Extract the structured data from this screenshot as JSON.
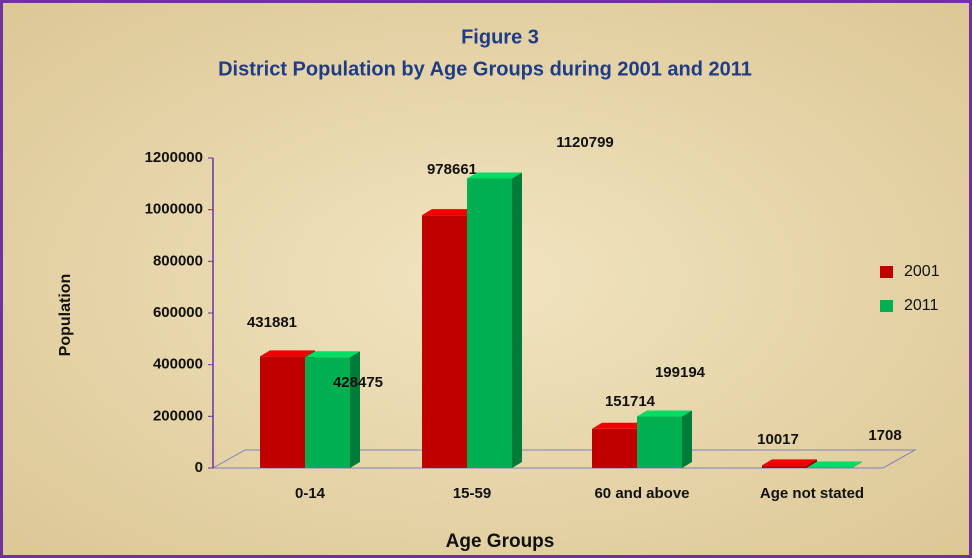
{
  "chart_data": {
    "type": "bar3d",
    "title": "Figure 3",
    "subtitle": "District Population by Age Groups during 2001 and 2011",
    "y_label": "Population",
    "x_label": "Age Groups",
    "categories": [
      "0-14",
      "15-59",
      "60  and above",
      "Age not stated"
    ],
    "series": [
      {
        "name": "2001",
        "color": "#c00000",
        "values": [
          431881,
          978661,
          151714,
          10017
        ]
      },
      {
        "name": "2011",
        "color": "#00b050",
        "values": [
          428475,
          1120799,
          199194,
          1708
        ]
      }
    ],
    "ylim": [
      0,
      1200000
    ],
    "yticks": [
      0,
      200000,
      400000,
      600000,
      800000,
      1000000,
      1200000
    ],
    "legend": "right"
  }
}
